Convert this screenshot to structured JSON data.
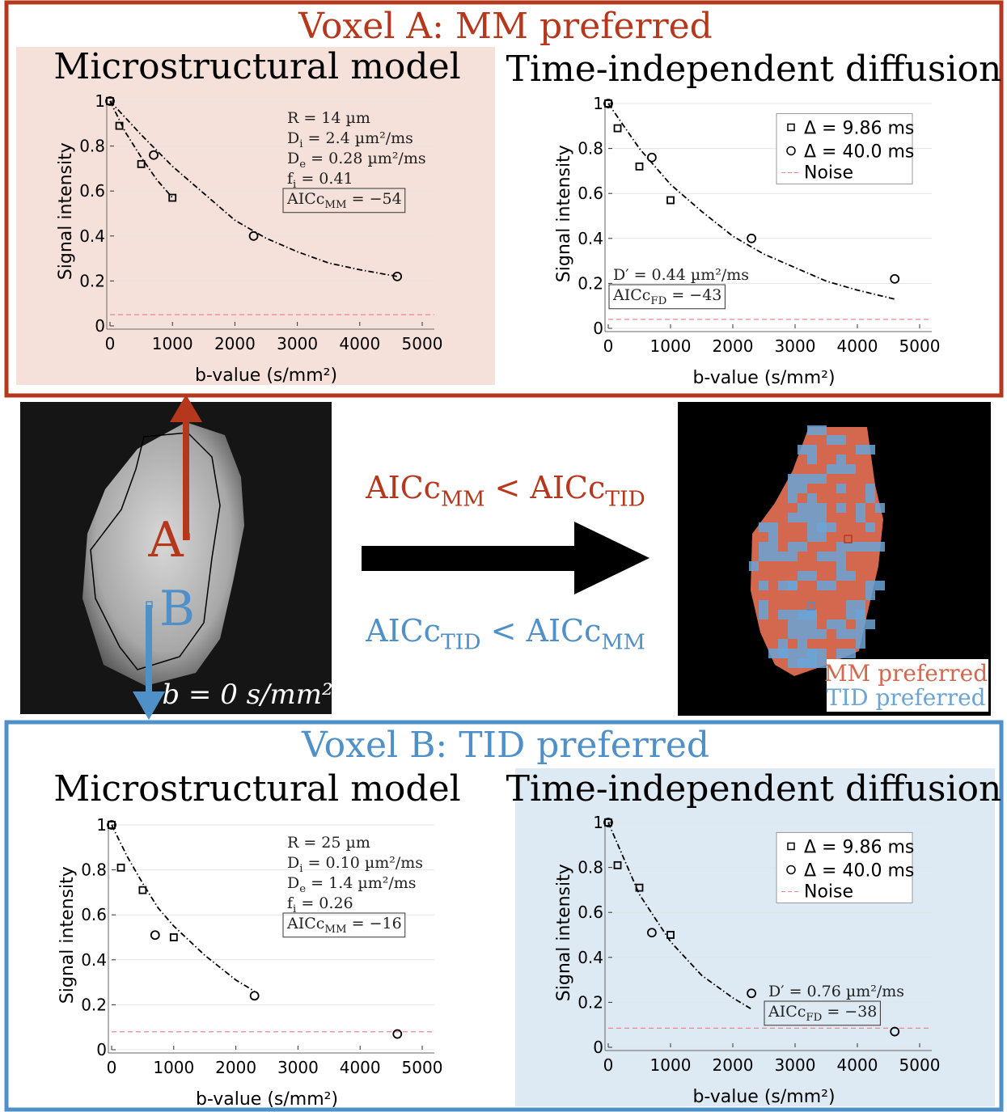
{
  "headers": {
    "voxel_a": "Voxel A: MM preferred",
    "voxel_b": "Voxel B: TID preferred"
  },
  "image_labels": {
    "a": "A",
    "b": "B",
    "b_value": "b = 0 s/mm²"
  },
  "comparisons": [
    {
      "color": "#b5381c",
      "parts": [
        {
          "text": "AICc"
        },
        {
          "text": "MM",
          "sub": true
        },
        {
          "text": " < AICc"
        },
        {
          "text": "TID",
          "sub": true
        }
      ]
    },
    {
      "color": "#4f90c8",
      "parts": [
        {
          "text": "AICc"
        },
        {
          "text": "TID",
          "sub": true
        },
        {
          "text": " < AICc"
        },
        {
          "text": "MM",
          "sub": true
        }
      ]
    }
  ],
  "map_legend": [
    {
      "text": "MM preferred",
      "color": "#d4684e"
    },
    {
      "text": "TID preferred",
      "color": "#6aa5d6"
    }
  ],
  "chart_data": [
    {
      "type": "scatter",
      "title": "Microstructural model",
      "xlabel": "b-value (s/mm²)",
      "ylabel": "Signal intensity",
      "xlim": [
        0,
        5000
      ],
      "ylim": [
        0,
        1.02
      ],
      "xticks": [
        0,
        1000,
        2000,
        3000,
        4000,
        5000
      ],
      "yticks": [
        0,
        0.2,
        0.4,
        0.6,
        0.8,
        1
      ],
      "grid": true,
      "series": [
        {
          "marker": "square",
          "color": "#000000",
          "x": [
            0,
            150,
            500,
            1000
          ],
          "values": [
            1.0,
            0.89,
            0.72,
            0.57
          ]
        },
        {
          "marker": "circle",
          "color": "#000000",
          "x": [
            0,
            700,
            2300,
            4600
          ],
          "values": [
            1.0,
            0.76,
            0.4,
            0.22
          ]
        }
      ],
      "fits": [
        {
          "color": "#000000",
          "x": [
            0,
            250,
            500,
            750,
            1000
          ],
          "values": [
            1.0,
            0.86,
            0.75,
            0.65,
            0.57
          ]
        },
        {
          "color": "#000000",
          "x": [
            0,
            500,
            1000,
            1500,
            2000,
            2500,
            3000,
            3500,
            4000,
            4600
          ],
          "values": [
            1.0,
            0.85,
            0.71,
            0.59,
            0.47,
            0.39,
            0.33,
            0.28,
            0.25,
            0.22
          ]
        }
      ],
      "noise": {
        "value": 0.05,
        "color": "#e8888f"
      },
      "annotations": [
        {
          "parts": [
            {
              "text": "R = 14 µm"
            }
          ]
        },
        {
          "parts": [
            {
              "text": "D"
            },
            {
              "text": "i",
              "sub": true
            },
            {
              "text": " = 2.4 µm²/ms"
            }
          ]
        },
        {
          "parts": [
            {
              "text": "D"
            },
            {
              "text": "e",
              "sub": true
            },
            {
              "text": " = 0.28 µm²/ms"
            }
          ]
        },
        {
          "parts": [
            {
              "text": "f"
            },
            {
              "text": "i",
              "sub": true
            },
            {
              "text": " = 0.41"
            }
          ]
        },
        {
          "parts": [
            {
              "text": "AICc"
            },
            {
              "text": "MM",
              "sub": true
            },
            {
              "text": " = −54"
            }
          ],
          "boxed": true
        }
      ]
    },
    {
      "type": "scatter",
      "title": "Time-independent diffusion",
      "xlabel": "b-value (s/mm²)",
      "ylabel": "Signal intensity",
      "xlim": [
        0,
        5000
      ],
      "ylim": [
        0,
        1.02
      ],
      "xticks": [
        0,
        1000,
        2000,
        3000,
        4000,
        5000
      ],
      "yticks": [
        0,
        0.2,
        0.4,
        0.6,
        0.8,
        1
      ],
      "grid": true,
      "legend": "upper right",
      "series": [
        {
          "name": "Δ = 9.86 ms",
          "marker": "square",
          "color": "#000000",
          "x": [
            0,
            150,
            500,
            1000
          ],
          "values": [
            1.0,
            0.89,
            0.72,
            0.57
          ]
        },
        {
          "name": "Δ = 40.0 ms",
          "marker": "circle",
          "color": "#000000",
          "x": [
            0,
            700,
            2300,
            4600
          ],
          "values": [
            1.0,
            0.76,
            0.4,
            0.22
          ]
        }
      ],
      "fits": [
        {
          "color": "#000000",
          "x": [
            0,
            500,
            1000,
            1500,
            2000,
            2500,
            3000,
            3500,
            4000,
            4600
          ],
          "values": [
            1.0,
            0.8,
            0.64,
            0.52,
            0.41,
            0.33,
            0.27,
            0.21,
            0.17,
            0.13
          ]
        }
      ],
      "noise": {
        "name": "Noise",
        "value": 0.04,
        "color": "#e8888f"
      },
      "annotations": [
        {
          "parts": [
            {
              "text": "D′ = 0.44 µm²/ms"
            }
          ]
        },
        {
          "parts": [
            {
              "text": "AICc"
            },
            {
              "text": "FD",
              "sub": true
            },
            {
              "text": " = −43"
            }
          ],
          "boxed": true
        }
      ]
    },
    {
      "type": "scatter",
      "title": "Microstructural model",
      "xlabel": "b-value (s/mm²)",
      "ylabel": "Signal intensity",
      "xlim": [
        0,
        5000
      ],
      "ylim": [
        0,
        1.02
      ],
      "xticks": [
        0,
        1000,
        2000,
        3000,
        4000,
        5000
      ],
      "yticks": [
        0,
        0.2,
        0.4,
        0.6,
        0.8,
        1
      ],
      "grid": true,
      "series": [
        {
          "marker": "square",
          "color": "#000000",
          "x": [
            0,
            150,
            500,
            1000
          ],
          "values": [
            1.0,
            0.81,
            0.71,
            0.5
          ]
        },
        {
          "marker": "circle",
          "color": "#000000",
          "x": [
            0,
            700,
            2300,
            4600
          ],
          "values": [
            1.0,
            0.51,
            0.24,
            0.07
          ]
        }
      ],
      "fits": [
        {
          "color": "#000000",
          "x": [
            0,
            250,
            500,
            750,
            1000,
            1500,
            2000,
            2300
          ],
          "values": [
            1.0,
            0.86,
            0.74,
            0.63,
            0.55,
            0.42,
            0.31,
            0.26
          ]
        }
      ],
      "noise": {
        "value": 0.08,
        "color": "#e8888f"
      },
      "annotations": [
        {
          "parts": [
            {
              "text": "R = 25 µm"
            }
          ]
        },
        {
          "parts": [
            {
              "text": "D"
            },
            {
              "text": "i",
              "sub": true
            },
            {
              "text": " = 0.10 µm²/ms"
            }
          ]
        },
        {
          "parts": [
            {
              "text": "D"
            },
            {
              "text": "e",
              "sub": true
            },
            {
              "text": " = 1.4 µm²/ms"
            }
          ]
        },
        {
          "parts": [
            {
              "text": "f"
            },
            {
              "text": "i",
              "sub": true
            },
            {
              "text": " = 0.26"
            }
          ]
        },
        {
          "parts": [
            {
              "text": "AICc"
            },
            {
              "text": "MM",
              "sub": true
            },
            {
              "text": " = −16"
            }
          ],
          "boxed": true
        }
      ]
    },
    {
      "type": "scatter",
      "title": "Time-independent diffusion",
      "xlabel": "b-value (s/mm²)",
      "ylabel": "Signal intensity",
      "xlim": [
        0,
        5000
      ],
      "ylim": [
        0,
        1.02
      ],
      "xticks": [
        0,
        1000,
        2000,
        3000,
        4000,
        5000
      ],
      "yticks": [
        0,
        0.2,
        0.4,
        0.6,
        0.8,
        1
      ],
      "grid": true,
      "legend": "upper right",
      "series": [
        {
          "name": "Δ = 9.86 ms",
          "marker": "square",
          "color": "#000000",
          "x": [
            0,
            150,
            500,
            1000
          ],
          "values": [
            1.0,
            0.81,
            0.71,
            0.5
          ]
        },
        {
          "name": "Δ = 40.0 ms",
          "marker": "circle",
          "color": "#000000",
          "x": [
            0,
            700,
            2300,
            4600
          ],
          "values": [
            1.0,
            0.51,
            0.24,
            0.07
          ]
        }
      ],
      "fits": [
        {
          "color": "#000000",
          "x": [
            0,
            500,
            1000,
            1500,
            2000,
            2300
          ],
          "values": [
            1.0,
            0.68,
            0.47,
            0.32,
            0.22,
            0.17
          ]
        }
      ],
      "noise": {
        "name": "Noise",
        "value": 0.085,
        "color": "#e8888f"
      },
      "annotations": [
        {
          "parts": [
            {
              "text": "D′ = 0.76 µm²/ms"
            }
          ]
        },
        {
          "parts": [
            {
              "text": "AICc"
            },
            {
              "text": "FD",
              "sub": true
            },
            {
              "text": " = −38"
            }
          ],
          "boxed": true
        }
      ]
    }
  ]
}
